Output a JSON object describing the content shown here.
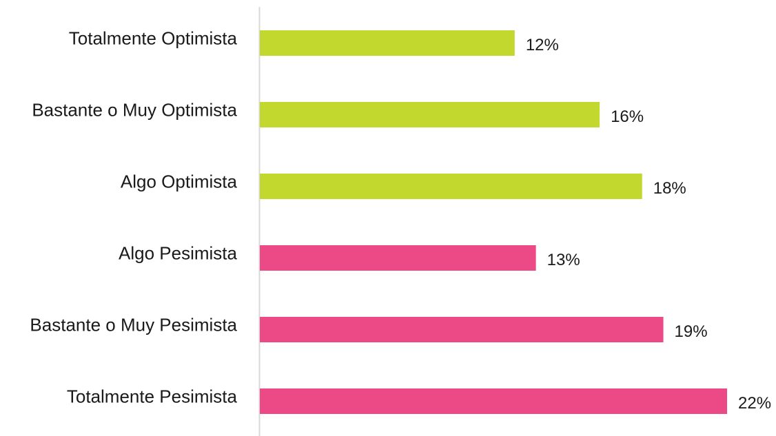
{
  "chart_data": {
    "type": "bar",
    "orientation": "horizontal",
    "categories": [
      "Totalmente Optimista",
      "Bastante o Muy Optimista",
      "Algo Optimista",
      "Algo Pesimista",
      "Bastante o Muy Pesimista",
      "Totalmente Pesimista"
    ],
    "values": [
      12,
      16,
      18,
      13,
      19,
      22
    ],
    "value_labels": [
      "12%",
      "16%",
      "18%",
      "13%",
      "19%",
      "22%"
    ],
    "bar_colors": [
      "#c2d82e",
      "#c2d82e",
      "#c2d82e",
      "#ec4a87",
      "#ec4a87",
      "#ec4a87"
    ],
    "axis_color": "#d9d9d9",
    "xlim": [
      0,
      22
    ],
    "title": "",
    "xlabel": "",
    "ylabel": "",
    "grid": false,
    "legend": "none"
  }
}
